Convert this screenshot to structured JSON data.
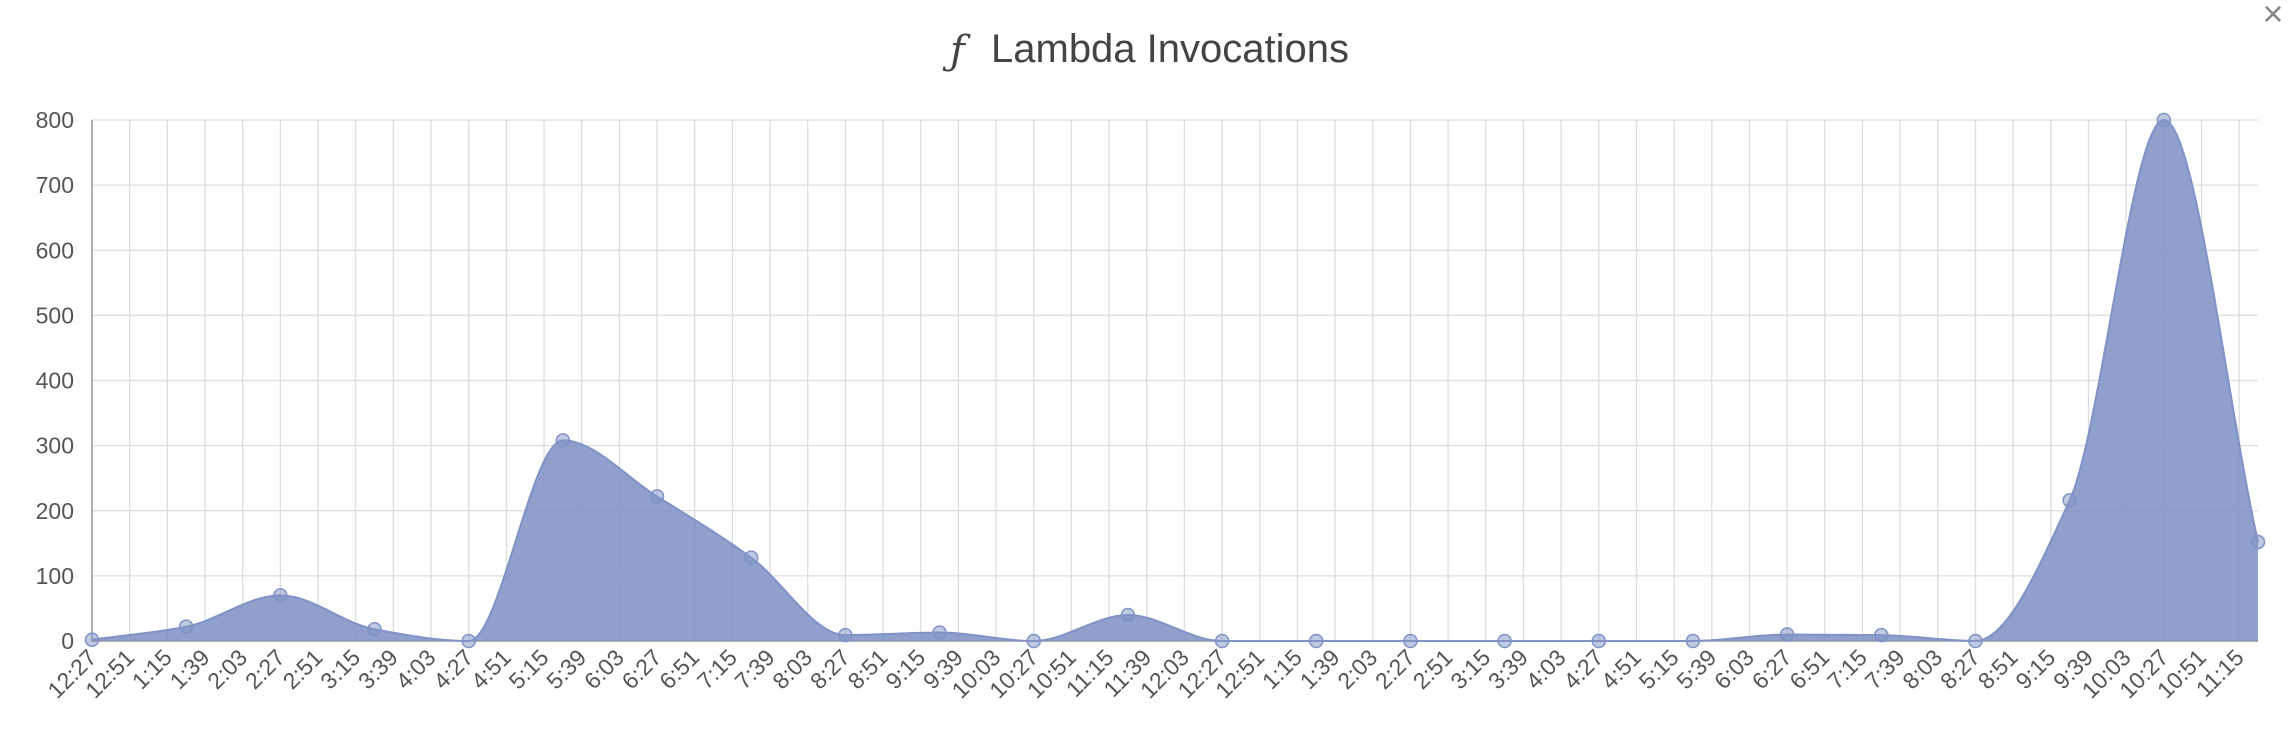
{
  "chart_data": {
    "type": "area",
    "title": "Lambda Invocations",
    "icon": "ƒ",
    "close": "×",
    "color": "#8093c6",
    "x": [
      0,
      60,
      120,
      180,
      240,
      300,
      360,
      420,
      480,
      540,
      600,
      660,
      720,
      780,
      840,
      900,
      960,
      1020,
      1080,
      1140,
      1200,
      1260,
      1320,
      1380
    ],
    "values": [
      2,
      22,
      70,
      18,
      0,
      308,
      222,
      128,
      9,
      13,
      0,
      40,
      0,
      0,
      0,
      0,
      0,
      0,
      10,
      9,
      0,
      216,
      800,
      152
    ],
    "xlim": [
      0,
      1380
    ],
    "xticks": [
      {
        "value": 0,
        "label": "12:27"
      },
      {
        "value": 24,
        "label": "12:51"
      },
      {
        "value": 48,
        "label": "1:15"
      },
      {
        "value": 72,
        "label": "1:39"
      },
      {
        "value": 96,
        "label": "2:03"
      },
      {
        "value": 120,
        "label": "2:27"
      },
      {
        "value": 144,
        "label": "2:51"
      },
      {
        "value": 168,
        "label": "3:15"
      },
      {
        "value": 192,
        "label": "3:39"
      },
      {
        "value": 216,
        "label": "4:03"
      },
      {
        "value": 240,
        "label": "4:27"
      },
      {
        "value": 264,
        "label": "4:51"
      },
      {
        "value": 288,
        "label": "5:15"
      },
      {
        "value": 312,
        "label": "5:39"
      },
      {
        "value": 336,
        "label": "6:03"
      },
      {
        "value": 360,
        "label": "6:27"
      },
      {
        "value": 384,
        "label": "6:51"
      },
      {
        "value": 408,
        "label": "7:15"
      },
      {
        "value": 432,
        "label": "7:39"
      },
      {
        "value": 456,
        "label": "8:03"
      },
      {
        "value": 480,
        "label": "8:27"
      },
      {
        "value": 504,
        "label": "8:51"
      },
      {
        "value": 528,
        "label": "9:15"
      },
      {
        "value": 552,
        "label": "9:39"
      },
      {
        "value": 576,
        "label": "10:03"
      },
      {
        "value": 600,
        "label": "10:27"
      },
      {
        "value": 624,
        "label": "10:51"
      },
      {
        "value": 648,
        "label": "11:15"
      },
      {
        "value": 672,
        "label": "11:39"
      },
      {
        "value": 696,
        "label": "12:03"
      },
      {
        "value": 720,
        "label": "12:27"
      },
      {
        "value": 744,
        "label": "12:51"
      },
      {
        "value": 768,
        "label": "1:15"
      },
      {
        "value": 792,
        "label": "1:39"
      },
      {
        "value": 816,
        "label": "2:03"
      },
      {
        "value": 840,
        "label": "2:27"
      },
      {
        "value": 864,
        "label": "2:51"
      },
      {
        "value": 888,
        "label": "3:15"
      },
      {
        "value": 912,
        "label": "3:39"
      },
      {
        "value": 936,
        "label": "4:03"
      },
      {
        "value": 960,
        "label": "4:27"
      },
      {
        "value": 984,
        "label": "4:51"
      },
      {
        "value": 1008,
        "label": "5:15"
      },
      {
        "value": 1032,
        "label": "5:39"
      },
      {
        "value": 1056,
        "label": "6:03"
      },
      {
        "value": 1080,
        "label": "6:27"
      },
      {
        "value": 1104,
        "label": "6:51"
      },
      {
        "value": 1128,
        "label": "7:15"
      },
      {
        "value": 1152,
        "label": "7:39"
      },
      {
        "value": 1176,
        "label": "8:03"
      },
      {
        "value": 1200,
        "label": "8:27"
      },
      {
        "value": 1224,
        "label": "8:51"
      },
      {
        "value": 1248,
        "label": "9:15"
      },
      {
        "value": 1272,
        "label": "9:39"
      },
      {
        "value": 1296,
        "label": "10:03"
      },
      {
        "value": 1320,
        "label": "10:27"
      },
      {
        "value": 1344,
        "label": "10:51"
      },
      {
        "value": 1368,
        "label": "11:15"
      }
    ],
    "ylim": [
      0,
      800
    ],
    "yticks": [
      0,
      100,
      200,
      300,
      400,
      500,
      600,
      700,
      800
    ],
    "grid": true
  }
}
